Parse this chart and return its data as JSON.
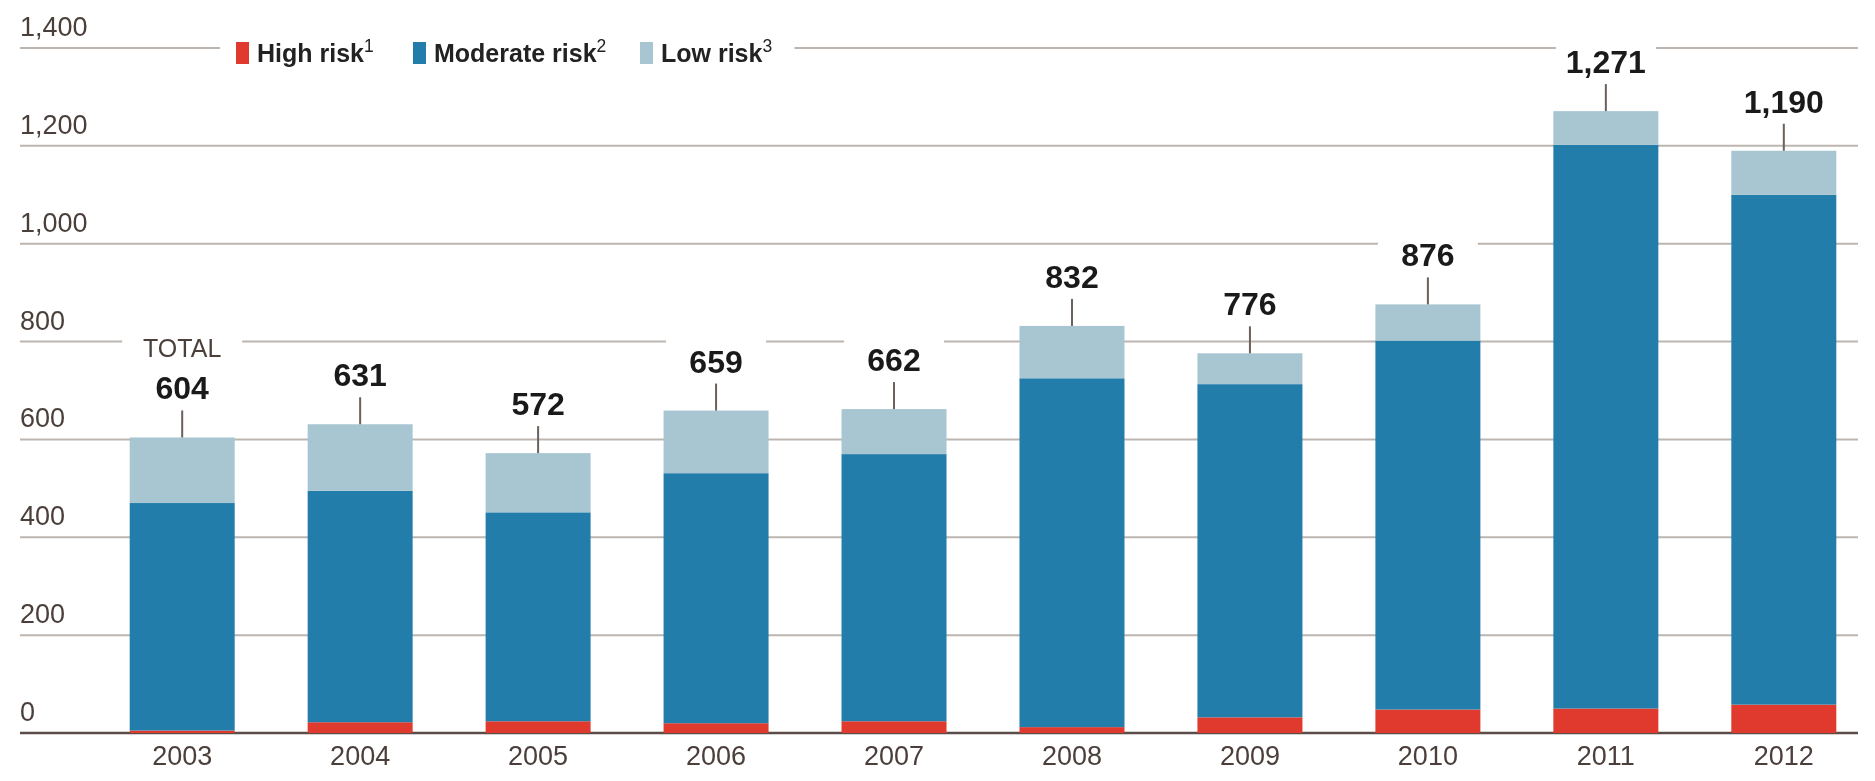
{
  "chart_data": {
    "type": "bar",
    "stacked": true,
    "categories": [
      "2003",
      "2004",
      "2005",
      "2006",
      "2007",
      "2008",
      "2009",
      "2010",
      "2011",
      "2012"
    ],
    "series": [
      {
        "name": "High risk$^{1}$",
        "color": "#e03a2f",
        "values": [
          5,
          22,
          24,
          20,
          24,
          12,
          32,
          48,
          50,
          58
        ]
      },
      {
        "name": "Moderate risk$^{2}$",
        "color": "#237dab",
        "values": [
          465,
          473,
          427,
          511,
          546,
          713,
          681,
          754,
          1152,
          1042
        ]
      },
      {
        "name": "Low risk$^{3}$",
        "color": "#a7c6d1",
        "values": [
          134,
          136,
          121,
          128,
          92,
          107,
          63,
          74,
          69,
          90
        ]
      }
    ],
    "totals": [
      "604",
      "631",
      "572",
      "659",
      "662",
      "832",
      "776",
      "876",
      "1,271",
      "1,190"
    ],
    "annotations": [
      "TOTAL"
    ],
    "ylim": [
      0,
      1400
    ],
    "yticks": [
      0,
      200,
      400,
      600,
      800,
      {
        "value": 1000,
        "label": "1,000"
      },
      {
        "value": 1200,
        "label": "1,200"
      },
      {
        "value": 1400,
        "label": "1,400"
      }
    ],
    "grid": "y",
    "legend": "top left"
  }
}
